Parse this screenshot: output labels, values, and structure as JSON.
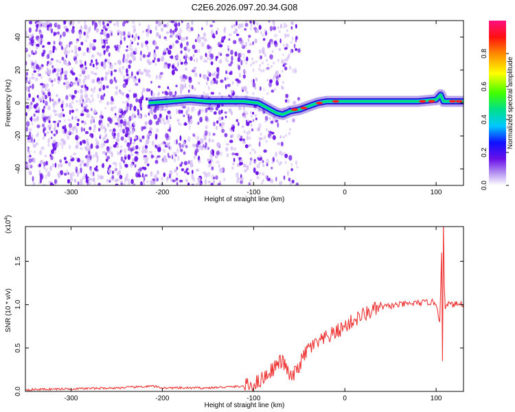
{
  "title": "C2E6.2026.097.20.34.G08",
  "colors": {
    "snr_line": "#ee3333",
    "spectral_ridge": "#00e070",
    "scatter_dark": "#6a10e8",
    "scatter_light": "#d6bff5"
  },
  "chart_data": [
    {
      "type": "heatmap",
      "xlabel": "Height of straight line (km)",
      "ylabel": "Frequency (Hz)",
      "xlim": [
        -350,
        130
      ],
      "ylim": [
        -50,
        50
      ],
      "x_ticks": [
        "-300",
        "-200",
        "-100",
        "0",
        "100"
      ],
      "y_ticks": [
        "-40",
        "-20",
        "0",
        "20",
        "40"
      ],
      "colorbar": {
        "label": "Normalized spectral amplitude",
        "range": [
          0,
          1
        ],
        "ticks": [
          "0.0",
          "0.2",
          "0.4",
          "0.6",
          "0.8"
        ]
      },
      "ridge": {
        "x": [
          -215,
          -190,
          -170,
          -150,
          -130,
          -110,
          -95,
          -85,
          -75,
          -68,
          -60,
          -50,
          -40,
          -30,
          -20,
          -10,
          0,
          20,
          50,
          80,
          100,
          105,
          108,
          115,
          130
        ],
        "y": [
          0,
          1,
          2,
          1,
          1,
          1,
          0,
          -3,
          -6,
          -7,
          -5,
          -4,
          -2,
          0,
          1,
          1,
          1,
          1,
          1,
          1,
          2,
          5,
          1,
          1,
          1
        ]
      }
    },
    {
      "type": "line",
      "xlabel": "Height of straight line (km)",
      "ylabel": "SNR (10 * v/v)",
      "y_multiplier": "(x10",
      "y_multiplier_exp": "4",
      "y_multiplier_close": ")",
      "xlim": [
        -350,
        130
      ],
      "ylim": [
        0,
        1.9
      ],
      "x_ticks": [
        "-300",
        "-200",
        "-100",
        "0",
        "100"
      ],
      "y_ticks": [
        "0.0",
        "0.5",
        "1.0",
        "1.5"
      ],
      "series": [
        {
          "x": [
            -350,
            -300,
            -250,
            -210,
            -200,
            -150,
            -110,
            -100,
            -90,
            -80,
            -70,
            -65,
            -60,
            -55,
            -50,
            -45,
            -40,
            -30,
            -20,
            -10,
            0,
            10,
            20,
            30,
            40,
            60,
            80,
            95,
            100,
            104,
            106,
            107,
            108,
            109,
            110,
            112,
            115,
            130
          ],
          "y": [
            0.02,
            0.03,
            0.04,
            0.06,
            0.04,
            0.04,
            0.06,
            0.08,
            0.15,
            0.25,
            0.35,
            0.3,
            0.15,
            0.2,
            0.3,
            0.4,
            0.5,
            0.55,
            0.62,
            0.68,
            0.75,
            0.82,
            0.88,
            0.93,
            0.97,
            1.0,
            1.02,
            1.03,
            1.02,
            0.8,
            1.6,
            0.35,
            1.95,
            1.2,
            0.95,
            1.02,
            1.0,
            1.01
          ]
        }
      ]
    }
  ]
}
